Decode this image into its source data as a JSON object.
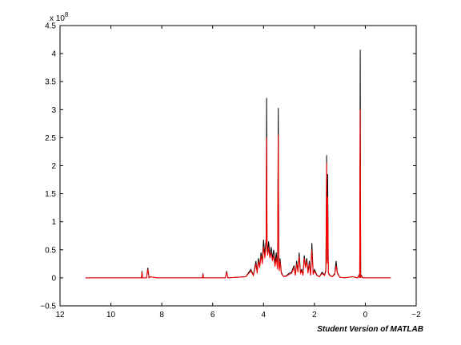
{
  "chart_data": {
    "type": "line",
    "title": "",
    "xlabel": "",
    "ylabel": "",
    "x_reversed": true,
    "xlim": [
      12,
      -2
    ],
    "ylim": [
      -0.5,
      4.5
    ],
    "y_exponent_label": "x 10",
    "y_exponent_power": "8",
    "xticks": [
      12,
      10,
      8,
      6,
      4,
      2,
      0,
      -2
    ],
    "xtick_labels": [
      "12",
      "10",
      "8",
      "6",
      "4",
      "2",
      "0",
      "−2"
    ],
    "yticks": [
      -0.5,
      0,
      0.5,
      1,
      1.5,
      2,
      2.5,
      3,
      3.5,
      4,
      4.5
    ],
    "ytick_labels": [
      "−0.5",
      "0",
      "0.5",
      "1",
      "1.5",
      "2",
      "2.5",
      "3",
      "3.5",
      "4",
      "4.5"
    ],
    "grid": false,
    "series": [
      {
        "color": "#000000",
        "x": [
          11.0,
          9.5,
          8.8,
          8.78,
          8.76,
          8.6,
          8.55,
          8.5,
          8.45,
          8.2,
          7.6,
          6.4,
          6.38,
          6.36,
          5.5,
          5.45,
          5.4,
          4.7,
          4.5,
          4.4,
          4.3,
          4.25,
          4.2,
          4.15,
          4.1,
          4.05,
          4.0,
          3.95,
          3.9,
          3.88,
          3.86,
          3.84,
          3.82,
          3.8,
          3.75,
          3.7,
          3.65,
          3.6,
          3.55,
          3.5,
          3.45,
          3.42,
          3.4,
          3.38,
          3.35,
          3.3,
          3.25,
          3.2,
          3.1,
          3.0,
          2.9,
          2.8,
          2.75,
          2.7,
          2.65,
          2.6,
          2.55,
          2.5,
          2.45,
          2.4,
          2.35,
          2.3,
          2.25,
          2.2,
          2.15,
          2.1,
          2.05,
          2.0,
          1.9,
          1.8,
          1.7,
          1.6,
          1.55,
          1.52,
          1.5,
          1.48,
          1.45,
          1.4,
          1.3,
          1.2,
          1.15,
          1.1,
          1.05,
          1.0,
          0.8,
          0.5,
          0.3,
          0.25,
          0.22,
          0.2,
          0.18,
          0.15,
          0.1,
          -0.2,
          -1.0
        ],
        "y": [
          0.0,
          0.0,
          0.0,
          0.12,
          0.0,
          0.0,
          0.18,
          0.0,
          0.02,
          0.0,
          0.0,
          0.0,
          0.08,
          0.0,
          0.0,
          0.12,
          0.0,
          0.02,
          0.15,
          0.05,
          0.3,
          0.1,
          0.35,
          0.2,
          0.45,
          0.3,
          0.68,
          0.4,
          0.7,
          3.21,
          0.6,
          0.45,
          0.55,
          0.65,
          0.4,
          0.55,
          0.35,
          0.5,
          0.25,
          0.45,
          0.2,
          3.03,
          0.3,
          0.15,
          0.35,
          0.1,
          0.05,
          0.02,
          0.04,
          0.08,
          0.1,
          0.22,
          0.05,
          0.3,
          0.12,
          0.45,
          0.1,
          0.15,
          0.05,
          0.4,
          0.2,
          0.35,
          0.1,
          0.3,
          0.05,
          0.62,
          0.08,
          0.15,
          0.05,
          0.02,
          0.1,
          0.05,
          0.15,
          2.19,
          0.3,
          1.85,
          0.1,
          0.05,
          0.02,
          0.08,
          0.3,
          0.1,
          0.05,
          0.01,
          0.0,
          0.02,
          0.0,
          0.05,
          0.0,
          4.07,
          0.0,
          0.04,
          0.0,
          0.0,
          0.0
        ]
      },
      {
        "color": "#ff0000",
        "x": [
          11.0,
          9.5,
          8.8,
          8.78,
          8.76,
          8.6,
          8.55,
          8.5,
          8.45,
          8.2,
          7.6,
          6.4,
          6.38,
          6.36,
          5.5,
          5.45,
          5.4,
          4.7,
          4.5,
          4.4,
          4.3,
          4.25,
          4.2,
          4.15,
          4.1,
          4.05,
          4.0,
          3.95,
          3.9,
          3.88,
          3.86,
          3.84,
          3.82,
          3.8,
          3.75,
          3.7,
          3.65,
          3.6,
          3.55,
          3.5,
          3.45,
          3.42,
          3.4,
          3.38,
          3.35,
          3.3,
          3.25,
          3.2,
          3.1,
          3.0,
          2.9,
          2.8,
          2.75,
          2.7,
          2.65,
          2.6,
          2.55,
          2.5,
          2.45,
          2.4,
          2.35,
          2.3,
          2.25,
          2.2,
          2.15,
          2.1,
          2.05,
          2.0,
          1.9,
          1.8,
          1.7,
          1.6,
          1.55,
          1.52,
          1.5,
          1.48,
          1.45,
          1.4,
          1.3,
          1.2,
          1.15,
          1.1,
          1.05,
          1.0,
          0.8,
          0.5,
          0.3,
          0.25,
          0.22,
          0.2,
          0.18,
          0.15,
          0.1,
          -0.2,
          -1.0
        ],
        "y": [
          0.0,
          0.0,
          0.0,
          0.1,
          0.0,
          0.0,
          0.15,
          0.0,
          0.02,
          0.0,
          0.0,
          0.0,
          0.07,
          0.0,
          0.0,
          0.1,
          0.0,
          0.02,
          0.12,
          0.04,
          0.25,
          0.08,
          0.3,
          0.18,
          0.4,
          0.25,
          0.55,
          0.35,
          0.6,
          2.5,
          0.5,
          0.4,
          0.45,
          0.55,
          0.35,
          0.45,
          0.3,
          0.4,
          0.2,
          0.35,
          0.15,
          2.55,
          0.25,
          0.12,
          0.3,
          0.08,
          0.04,
          0.02,
          0.03,
          0.06,
          0.08,
          0.18,
          0.04,
          0.25,
          0.1,
          0.38,
          0.08,
          0.12,
          0.04,
          0.35,
          0.18,
          0.3,
          0.08,
          0.25,
          0.04,
          0.5,
          0.06,
          0.12,
          0.04,
          0.02,
          0.08,
          0.04,
          0.12,
          2.05,
          0.25,
          1.45,
          0.08,
          0.04,
          0.02,
          0.06,
          0.22,
          0.08,
          0.04,
          0.01,
          0.0,
          0.02,
          0.0,
          0.04,
          0.0,
          3.0,
          0.0,
          0.03,
          0.0,
          0.0,
          0.0
        ]
      }
    ]
  },
  "footer": {
    "watermark": "Student Version of MATLAB"
  }
}
